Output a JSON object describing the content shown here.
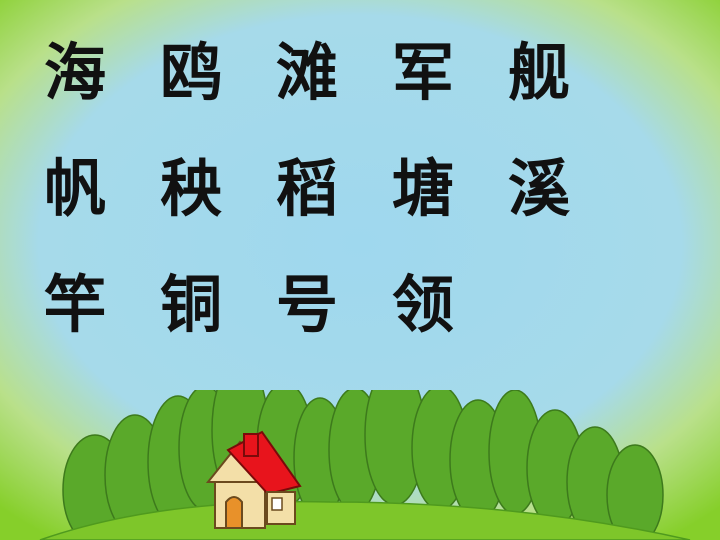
{
  "vocabulary": {
    "row1": [
      "海",
      "鸥",
      "滩",
      "军",
      "舰"
    ],
    "row2": [
      "帆",
      "秧",
      "稻",
      "塘",
      "溪"
    ],
    "row3": [
      "竿",
      "铜",
      "号",
      "领"
    ]
  },
  "scene": {
    "sky_color": "#a6daea",
    "grass_color": "#7ec62a",
    "tree_color": "#5aa92a",
    "roof_color": "#e8141c",
    "wall_color": "#f3dfa8",
    "door_color": "#e8912a"
  }
}
